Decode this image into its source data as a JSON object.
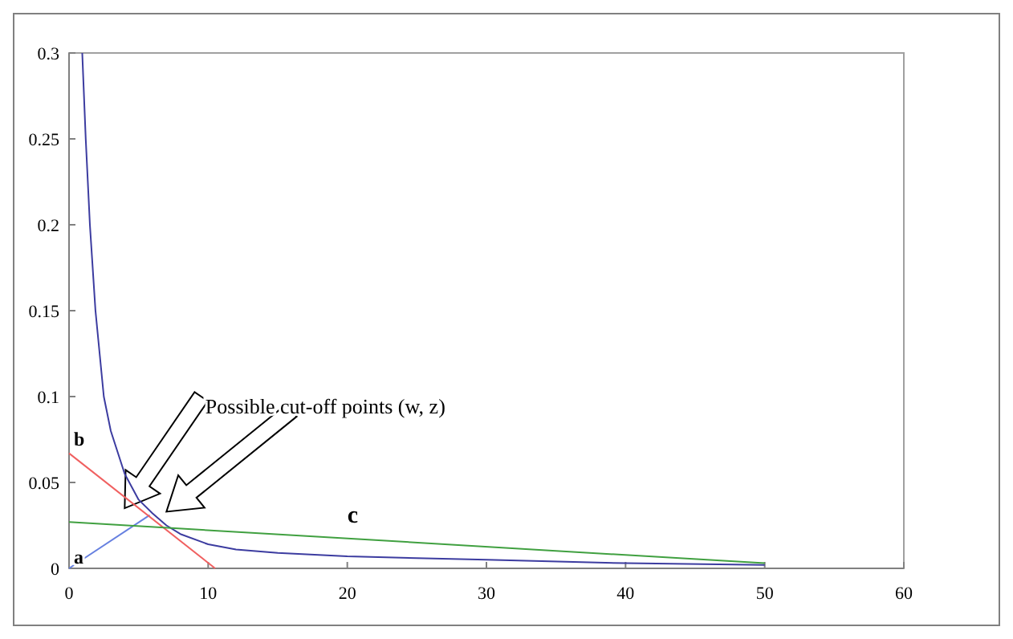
{
  "chart_data": {
    "type": "line",
    "xlim": [
      0,
      60
    ],
    "xticks": [
      0,
      10,
      20,
      30,
      40,
      50,
      60
    ],
    "ylim": [
      0,
      0.3
    ],
    "yticks": [
      0,
      0.05,
      0.1,
      0.15,
      0.2,
      0.25,
      0.3
    ],
    "grid": false,
    "marker": "none",
    "line_style": "solid",
    "series": [
      {
        "color": "#3c3ca0",
        "x": [
          0.95,
          1.2,
          1.5,
          1.9,
          2.5,
          3,
          4,
          5,
          6,
          7,
          8,
          10,
          12,
          15,
          20,
          30,
          40,
          50
        ],
        "values": [
          0.3,
          0.25,
          0.2,
          0.15,
          0.1,
          0.08,
          0.055,
          0.04,
          0.032,
          0.025,
          0.02,
          0.014,
          0.011,
          0.009,
          0.007,
          0.005,
          0.003,
          0.002
        ]
      },
      {
        "name": "a",
        "color": "#6680e0",
        "x": [
          0,
          5.8
        ],
        "values": [
          0,
          0.031
        ]
      },
      {
        "name": "b",
        "color": "#f06060",
        "x": [
          0,
          10.5
        ],
        "values": [
          0.067,
          0
        ]
      },
      {
        "name": "c",
        "color": "#40a040",
        "x": [
          0,
          50
        ],
        "values": [
          0.027,
          0.003
        ]
      }
    ],
    "annotations": [
      "Possible cut-off points (w, z)"
    ]
  }
}
